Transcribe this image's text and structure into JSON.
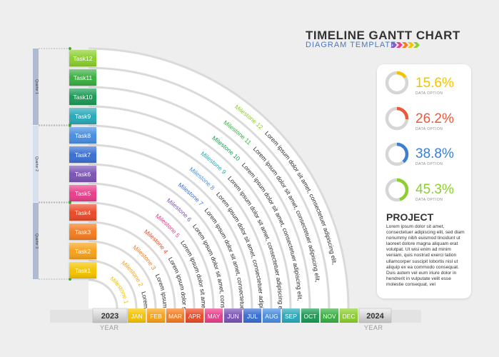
{
  "header": {
    "title": "TIMELINE GANTT CHART",
    "subtitle": "DIAGRAM TEMPLATE"
  },
  "tasks": [
    {
      "label": "Task1",
      "milestone": "Milestone 1",
      "text": "Lorem",
      "color": "#f5c400"
    },
    {
      "label": "Task2",
      "milestone": "Milestone 2",
      "text": "Lorem ipsum",
      "color": "#f7a21c"
    },
    {
      "label": "Task3",
      "milestone": "Milestone 3",
      "text": "Lorem ipsum dolor",
      "color": "#f57d22"
    },
    {
      "label": "Task4",
      "milestone": "Milestone 4",
      "text": "Lorem ipsum dolor sit",
      "color": "#ea4b2a"
    },
    {
      "label": "Task5",
      "milestone": "Milestone 5",
      "text": "Lorem ipsum dolor sit amet,",
      "color": "#e93f8c"
    },
    {
      "label": "Task6",
      "milestone": "Milestone 6",
      "text": "Lorem ipsum dolor sit amet, consectetuer",
      "color": "#7b55b5"
    },
    {
      "label": "Task7",
      "milestone": "Milestone 7",
      "text": "Lorem ipsum dolor sit amet, consectetuer adipiscing",
      "color": "#3b6fd3"
    },
    {
      "label": "Task8",
      "milestone": "Milestone 8",
      "text": "Lorem ipsum dolor sit amet, consectetuer adipiscing elit,",
      "color": "#4a8ee0"
    },
    {
      "label": "Task9",
      "milestone": "Milestone 9",
      "text": "Lorem ipsum dolor sit amet, consectetuer adipiscing elit,",
      "color": "#2aa9b8"
    },
    {
      "label": "Task10",
      "milestone": "Milestone 10",
      "text": "Lorem ipsum dolor sit amet, consectetuer adipiscing elit,",
      "color": "#1e9a56"
    },
    {
      "label": "Task11",
      "milestone": "Milestone 11",
      "text": "Lorem ipsum dolor sit amet, consectetuer adipiscing elit,",
      "color": "#3ab043"
    },
    {
      "label": "Task12",
      "milestone": "Milestone 12",
      "text": "Lorem ipsum dolor sit amet, consectetuer adipiscing elit,",
      "color": "#8ccf2e"
    }
  ],
  "quarters": [
    "Quarter 1",
    "Quarter 2",
    "Quarter 3"
  ],
  "months": [
    {
      "label": "JAN",
      "color": "#f5c400"
    },
    {
      "label": "FEB",
      "color": "#f7a21c"
    },
    {
      "label": "MAR",
      "color": "#f57d22"
    },
    {
      "label": "APR",
      "color": "#ea4b2a"
    },
    {
      "label": "MAY",
      "color": "#e93f8c"
    },
    {
      "label": "JUN",
      "color": "#7b55b5"
    },
    {
      "label": "JUL",
      "color": "#3b6fd3"
    },
    {
      "label": "AUG",
      "color": "#4a8ee0"
    },
    {
      "label": "SEP",
      "color": "#2aa9b8"
    },
    {
      "label": "OCT",
      "color": "#1e9a56"
    },
    {
      "label": "NOV",
      "color": "#3ab043"
    },
    {
      "label": "DEC",
      "color": "#8ccf2e"
    }
  ],
  "years": {
    "start": "2023",
    "end": "2024",
    "label": "YEAR"
  },
  "stats": [
    {
      "value": "15.6%",
      "fraction": 0.156,
      "label": "DATA OPTION",
      "color": "#f2c400"
    },
    {
      "value": "26.2%",
      "fraction": 0.262,
      "label": "DATA OPTION",
      "color": "#ea5a3a"
    },
    {
      "value": "38.8%",
      "fraction": 0.388,
      "label": "DATA OPTION",
      "color": "#3a7fd0"
    },
    {
      "value": "45.3%",
      "fraction": 0.453,
      "label": "DATA OPTION",
      "color": "#8ccf2e"
    }
  ],
  "project": {
    "title": "PROJECT",
    "text": "Lorem ipsum dolor sit amet, consectetuer adipiscing elit, sed diam nonummy nibh euismod tincidunt ut laoreet dolore magna aliquam erat volutpat. Ut wisi enim ad minim veniam, quis nostrud exerci tation ullamcorper suscipit lobortis nisl ut aliquip ex ea commodo consequat. Duis autem vel eum iriure dolor in hendrerit in vulputate velit esse molestie consequat, vel"
  }
}
